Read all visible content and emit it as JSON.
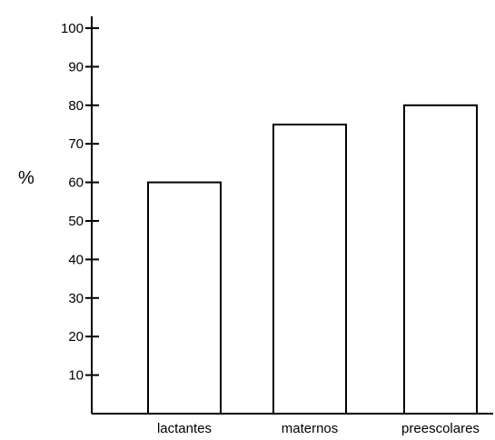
{
  "chart_data": {
    "type": "bar",
    "categories": [
      "lactantes",
      "maternos",
      "preescolares"
    ],
    "values": [
      60,
      75,
      80
    ],
    "ylabel": "%",
    "xlabel": "",
    "ylim": [
      0,
      100
    ],
    "yticks": [
      "10",
      "20",
      "30",
      "40",
      "50",
      "60",
      "70",
      "80",
      "90",
      "100"
    ],
    "grid": false,
    "colors": {
      "bar_fill": "#ffffff",
      "bar_stroke": "#000000",
      "axis": "#000000"
    }
  }
}
